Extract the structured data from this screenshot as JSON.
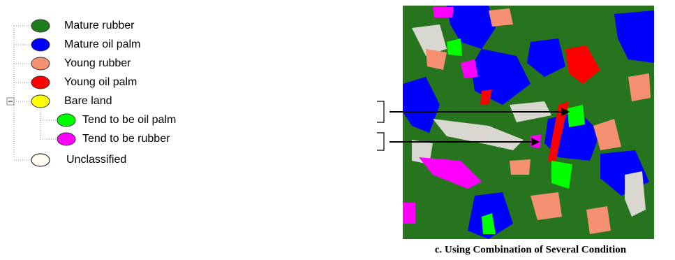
{
  "legend": {
    "items": [
      {
        "label": "Mature rubber",
        "color": "#1b7d1b"
      },
      {
        "label": "Mature oil palm",
        "color": "#0000ff"
      },
      {
        "label": "Young rubber",
        "color": "#f59070"
      },
      {
        "label": "Young oil palm",
        "color": "#ff0000"
      },
      {
        "label": "Bare land",
        "color": "#ffff00",
        "children": [
          {
            "label": "Tend to be oil palm",
            "color": "#00ff00"
          },
          {
            "label": "Tend to be rubber",
            "color": "#ff00ff"
          }
        ]
      },
      {
        "label": "Unclassified",
        "color": "#fffaf0"
      }
    ]
  },
  "caption": "c. Using Combination of Several Condition"
}
